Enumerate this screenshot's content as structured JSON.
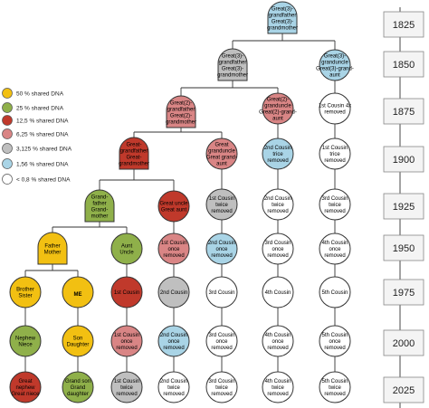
{
  "legend": [
    {
      "label": "50 % shared DNA",
      "color": "#f2c012"
    },
    {
      "label": "25 % shared DNA",
      "color": "#8fb04a"
    },
    {
      "label": "12,5 % shared DNA",
      "color": "#c0392b"
    },
    {
      "label": "6,25 % shared DNA",
      "color": "#d98585"
    },
    {
      "label": "3,125 % shared DNA",
      "color": "#bfbfbf"
    },
    {
      "label": "1,56 % shared DNA",
      "color": "#a9d4e6"
    },
    {
      "label": "< 0,8 % shared DNA",
      "color": "#ffffff"
    }
  ],
  "timeline": [
    "1825",
    "1850",
    "1875",
    "1900",
    "1925",
    "1950",
    "1975",
    "2000",
    "2025"
  ],
  "nodes": {
    "g3": [
      "Great(3)-",
      "grandfather",
      "Great(3)-",
      "grandmother"
    ],
    "g2": [
      "Great(2)-",
      "grandfather",
      "Great(2)-",
      "grandmother"
    ],
    "gg3": [
      "Great(3)-",
      "grandfather",
      "Great(3)-",
      "grandmother"
    ],
    "gg2_pair": [
      "Great(2)-",
      "grandfather",
      "Great(2)-",
      "grandmother"
    ],
    "gu3": [
      "Great(3)-",
      "granduncle",
      "Great(3)-grand-",
      "aunt"
    ],
    "gu2": [
      "Great(2)-",
      "granduncle",
      "Great(2)-grand-",
      "aunt"
    ],
    "c1r4": [
      "1st Cousin 4x",
      "removed"
    ],
    "ggp": [
      "Great-",
      "grandfather",
      "Great-",
      "grandmother"
    ],
    "gu1": [
      "Great",
      "granduncle",
      "Great grand-",
      "aunt"
    ],
    "c2r3": [
      "2nd Cousin",
      "trice",
      "removed"
    ],
    "c1r3": [
      "1st Cousin",
      "trice",
      "removed"
    ],
    "gp": [
      "Grand-",
      "father",
      "Grand-",
      "mother"
    ],
    "guncle": [
      "Great uncle",
      "Great aunt"
    ],
    "c1r2a": [
      "1st Cousin",
      "twice",
      "removed"
    ],
    "c2r2a": [
      "2nd Cousin",
      "twice",
      "removed"
    ],
    "c3r2a": [
      "3rd Cousin",
      "twice",
      "removed"
    ],
    "parents": [
      "Father",
      "Mother"
    ],
    "aunt": [
      "Aunt",
      "Uncle"
    ],
    "c1r1a": [
      "1st Cousin",
      "once",
      "removed"
    ],
    "c2r1a": [
      "2nd Cousin",
      "once",
      "removed"
    ],
    "c3r1a": [
      "3rd Cousin",
      "once",
      "removed"
    ],
    "c4r1a": [
      "4th Cousin",
      "once",
      "removed"
    ],
    "sib": [
      "Brother",
      "Sister"
    ],
    "me": [
      "ME"
    ],
    "c1": [
      "1st Cousin"
    ],
    "c2": [
      "2nd Cousin"
    ],
    "c3": [
      "3rd Cousin"
    ],
    "c4": [
      "4th Cousin"
    ],
    "c5": [
      "5th Cousin"
    ],
    "nephew": [
      "Nephew",
      "Niece"
    ],
    "son": [
      "Son",
      "Daughter"
    ],
    "c1r1b": [
      "1st Cousin",
      "once",
      "removed"
    ],
    "c2r1b": [
      "2nd Cousin",
      "once",
      "removed"
    ],
    "c3r1b": [
      "3rd Cousin",
      "once",
      "removed"
    ],
    "c4r1b": [
      "4th Cousin",
      "once",
      "removed"
    ],
    "c5r1b": [
      "5th Cousin",
      "once",
      "removed"
    ],
    "gnephew": [
      "Great",
      "nephew",
      "Great niece"
    ],
    "gson": [
      "Grand son",
      "Grand",
      "daughter"
    ],
    "c1r2b": [
      "1st Cousin",
      "twice",
      "removed"
    ],
    "c2r2b": [
      "2nd Cousin",
      "twice",
      "removed"
    ],
    "c3r2b": [
      "3rd Cousin",
      "twice",
      "removed"
    ],
    "c4r2b": [
      "4th Cousin",
      "twice",
      "removed"
    ],
    "c5r2b": [
      "5th Cousin",
      "twice",
      "removed"
    ]
  }
}
